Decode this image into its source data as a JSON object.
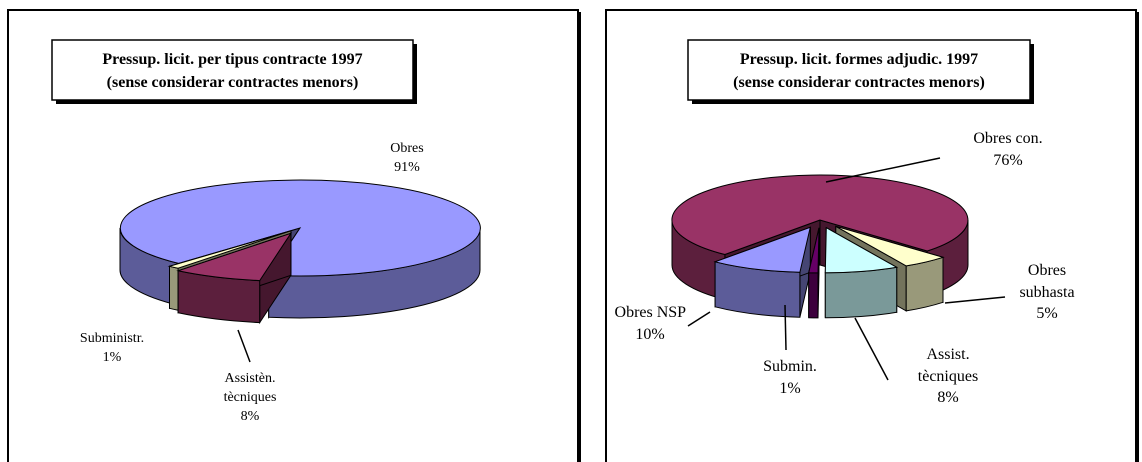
{
  "chart_data": [
    {
      "type": "pie",
      "title": "Pressup. licit. per tipus contracte 1997",
      "subtitle": "(sense considerar contractes menors)",
      "categories": [
        "Obres",
        "Subministr.",
        "Assistèn. tècniques"
      ],
      "values": [
        91,
        1,
        8
      ],
      "value_labels": [
        "91%",
        "1%",
        "8%"
      ],
      "colors": [
        "#9999ff",
        "#ffffcc",
        "#993366"
      ]
    },
    {
      "type": "pie",
      "title": "Pressup. licit.  formes adjudic. 1997",
      "subtitle": "(sense considerar contractes menors)",
      "categories": [
        "Obres con.",
        "Obres subhasta",
        "Assist. tècniques",
        "Submin.",
        "Obres NSP"
      ],
      "values": [
        76,
        5,
        8,
        1,
        10
      ],
      "value_labels": [
        "76%",
        "5%",
        "8%",
        "1%",
        "10%"
      ],
      "colors": [
        "#993366",
        "#ffffcc",
        "#ccffff",
        "#660066",
        "#9999ff"
      ]
    }
  ]
}
